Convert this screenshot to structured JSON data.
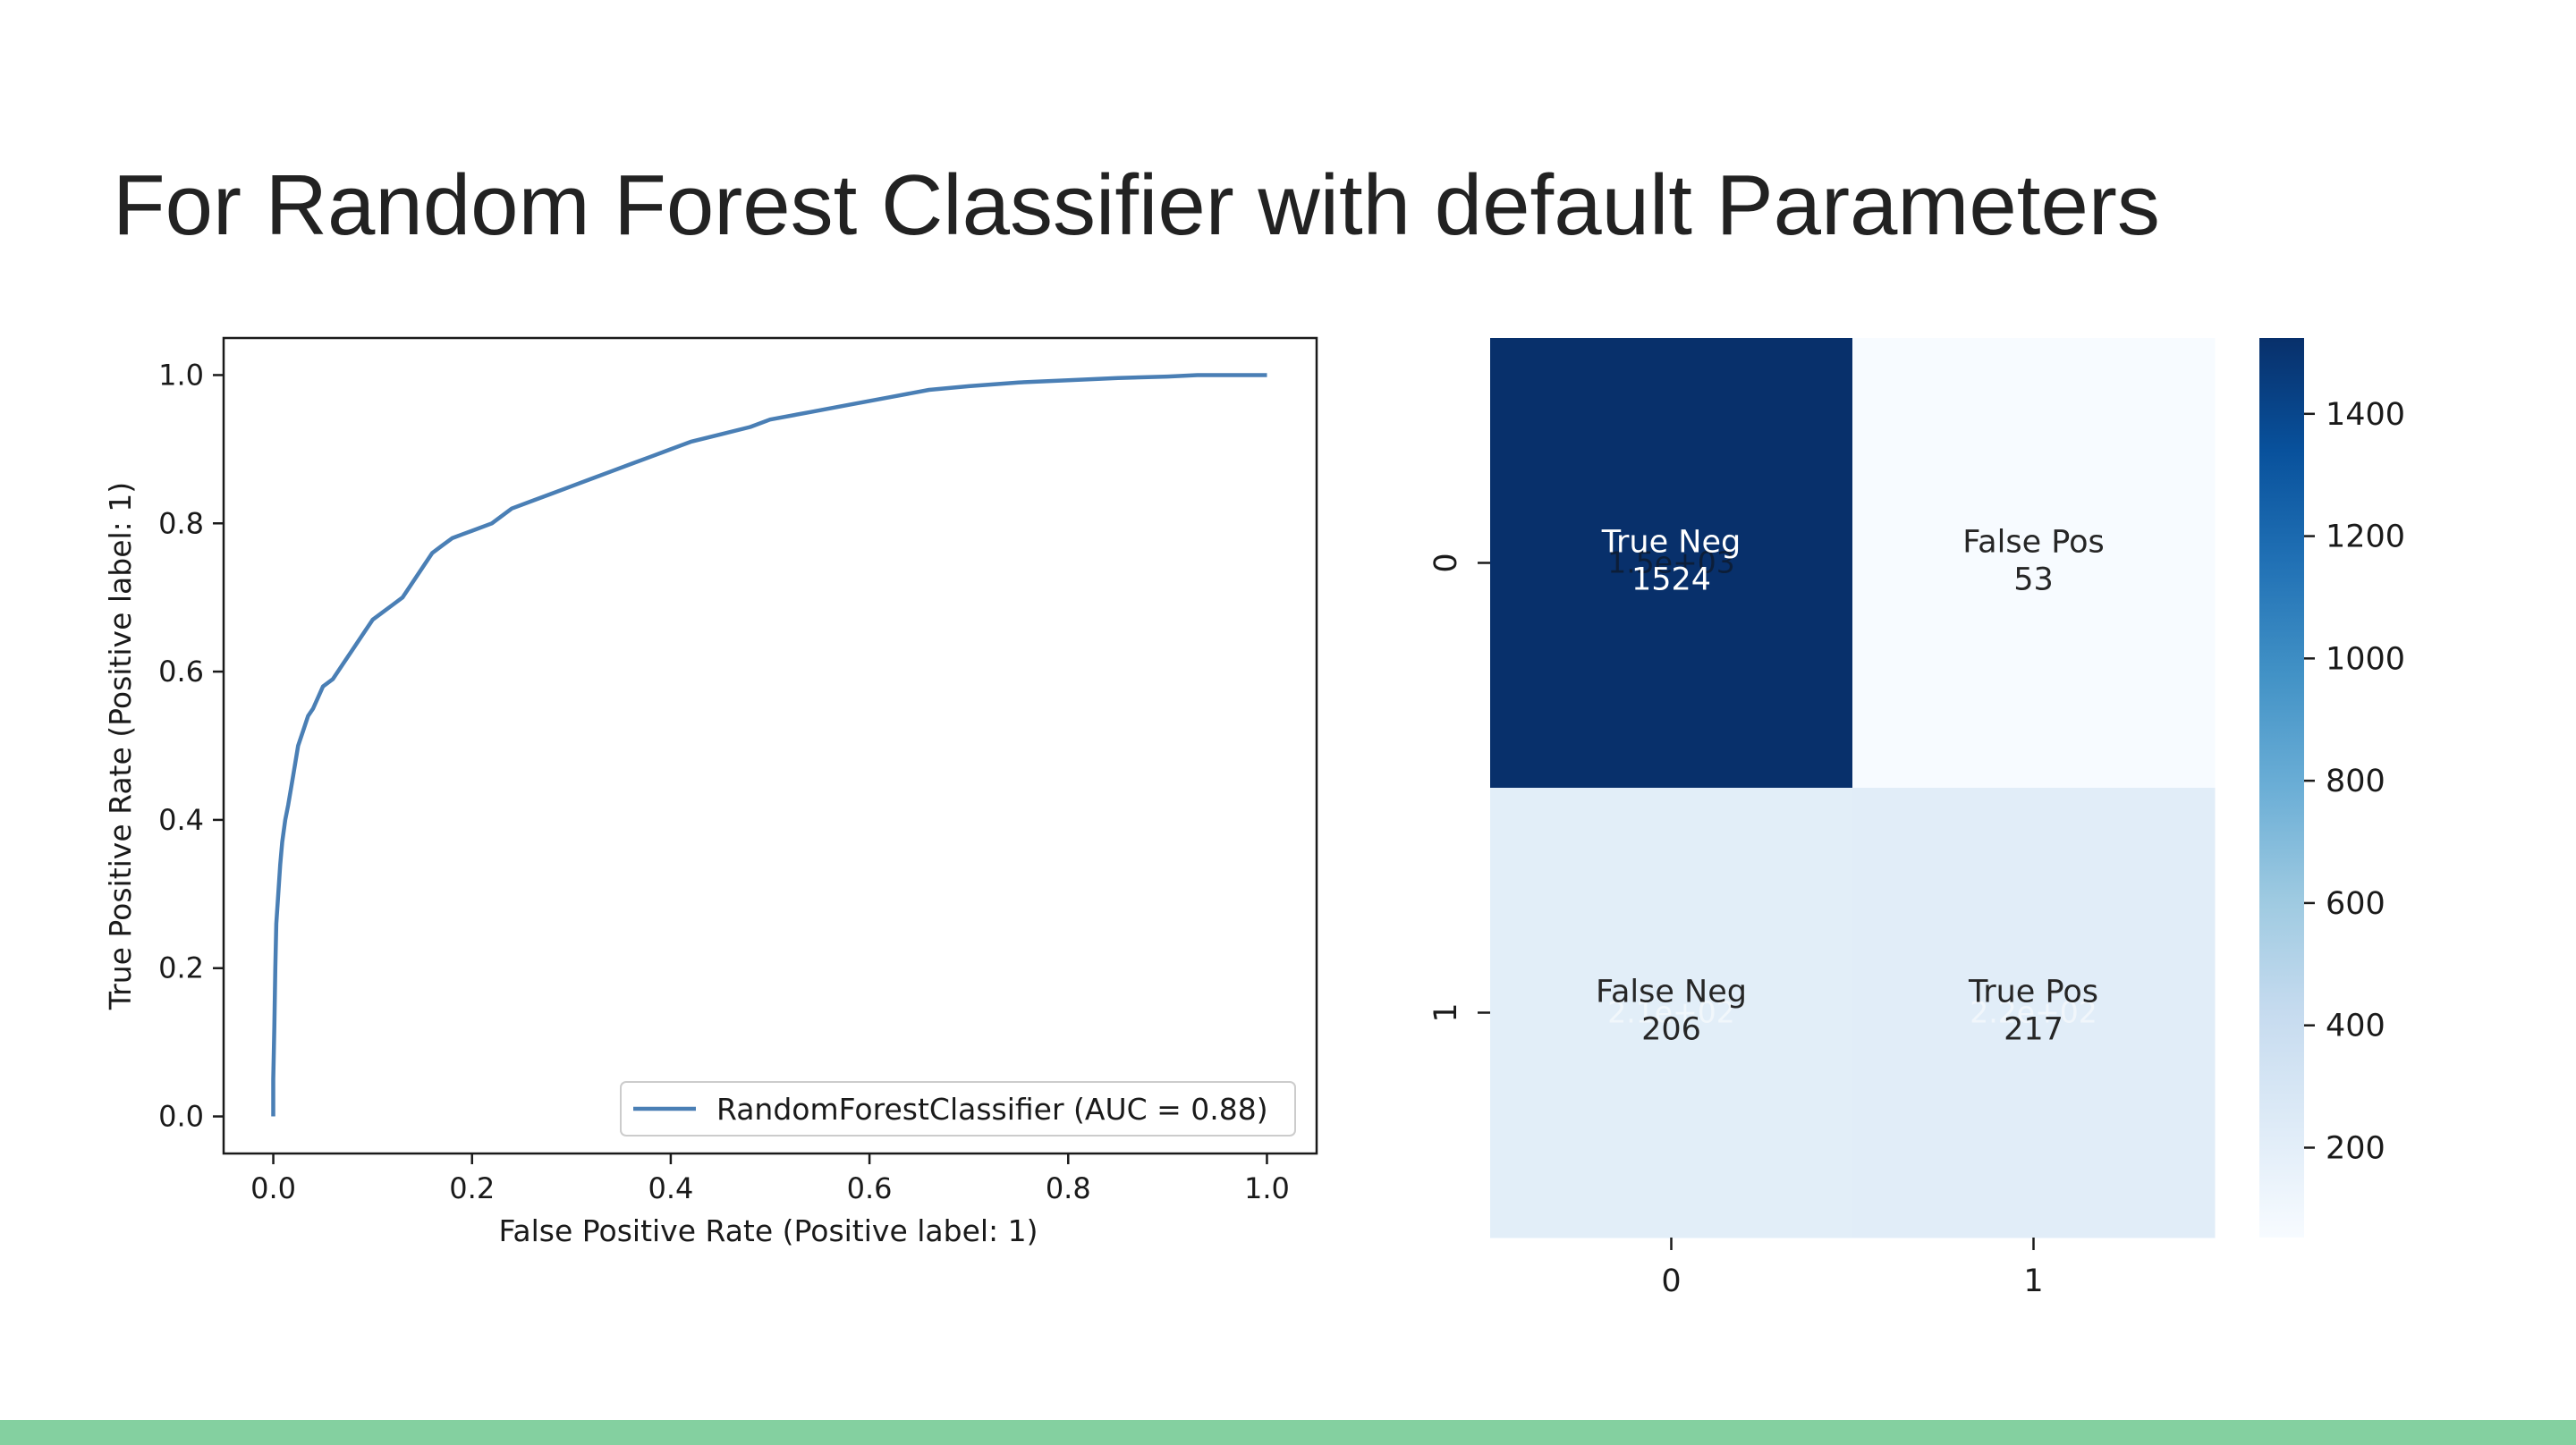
{
  "slide": {
    "title": "For Random Forest Classifier with default Parameters",
    "accent_color": "#84d0a0"
  },
  "chart_data": [
    {
      "type": "line",
      "title": "",
      "xlabel": "False Positive Rate (Positive label: 1)",
      "ylabel": "True Positive Rate (Positive label: 1)",
      "xlim": [
        -0.05,
        1.05
      ],
      "ylim": [
        -0.05,
        1.05
      ],
      "xticks": [
        "0.0",
        "0.2",
        "0.4",
        "0.6",
        "0.8",
        "1.0"
      ],
      "yticks": [
        "0.0",
        "0.2",
        "0.4",
        "0.6",
        "0.8",
        "1.0"
      ],
      "grid": false,
      "legend": {
        "position": "lower-right"
      },
      "series": [
        {
          "name": "RandomForestClassifier (AUC = 0.88)",
          "color": "#4a7fb5",
          "x": [
            0.0,
            0.0,
            0.001,
            0.002,
            0.003,
            0.005,
            0.007,
            0.009,
            0.012,
            0.015,
            0.02,
            0.025,
            0.03,
            0.035,
            0.04,
            0.05,
            0.06,
            0.07,
            0.08,
            0.09,
            0.1,
            0.11,
            0.12,
            0.13,
            0.14,
            0.15,
            0.16,
            0.17,
            0.18,
            0.19,
            0.2,
            0.22,
            0.24,
            0.26,
            0.28,
            0.3,
            0.32,
            0.34,
            0.36,
            0.38,
            0.4,
            0.42,
            0.45,
            0.48,
            0.5,
            0.54,
            0.58,
            0.62,
            0.66,
            0.7,
            0.75,
            0.8,
            0.85,
            0.9,
            0.93,
            0.96,
            1.0
          ],
          "y": [
            0.0,
            0.05,
            0.12,
            0.2,
            0.26,
            0.3,
            0.34,
            0.37,
            0.4,
            0.42,
            0.46,
            0.5,
            0.52,
            0.54,
            0.55,
            0.58,
            0.59,
            0.61,
            0.63,
            0.65,
            0.67,
            0.68,
            0.69,
            0.7,
            0.72,
            0.74,
            0.76,
            0.77,
            0.78,
            0.785,
            0.79,
            0.8,
            0.82,
            0.83,
            0.84,
            0.85,
            0.86,
            0.87,
            0.88,
            0.89,
            0.9,
            0.91,
            0.92,
            0.93,
            0.94,
            0.95,
            0.96,
            0.97,
            0.98,
            0.985,
            0.99,
            0.993,
            0.996,
            0.998,
            1.0,
            1.0,
            1.0
          ]
        }
      ]
    },
    {
      "type": "heatmap",
      "title": "",
      "rows": [
        "0",
        "1"
      ],
      "cols": [
        "0",
        "1"
      ],
      "cells": [
        {
          "row": 0,
          "col": 0,
          "label": "True Neg",
          "value": 1524,
          "shadow_text": "1.5e+03"
        },
        {
          "row": 0,
          "col": 1,
          "label": "False Pos",
          "value": 53
        },
        {
          "row": 1,
          "col": 0,
          "label": "False Neg",
          "value": 206,
          "shadow_text": "2.1e+02"
        },
        {
          "row": 1,
          "col": 1,
          "label": "True Pos",
          "value": 217,
          "shadow_text": "2.2e+02"
        }
      ],
      "colormap": "Blues",
      "colorbar": {
        "min": 53,
        "max": 1524,
        "ticks": [
          "200",
          "400",
          "600",
          "800",
          "1000",
          "1200",
          "1400"
        ]
      }
    }
  ]
}
